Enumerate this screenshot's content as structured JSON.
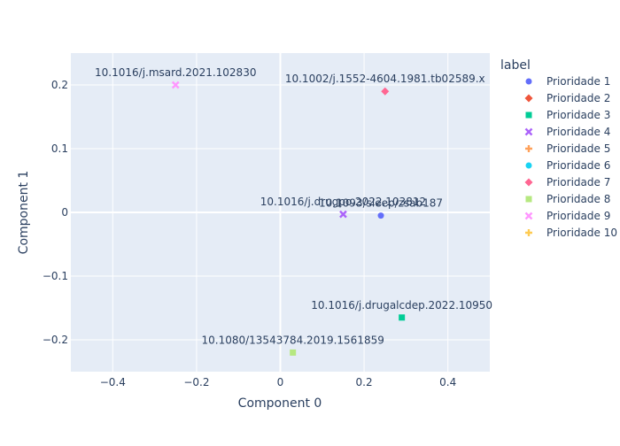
{
  "chart_data": {
    "type": "scatter",
    "xlabel": "Component 0",
    "ylabel": "Component 1",
    "xlim": [
      -0.5,
      0.5
    ],
    "ylim": [
      -0.25,
      0.25
    ],
    "x_ticks": [
      -0.4,
      -0.2,
      0,
      0.2,
      0.4
    ],
    "x_tick_labels": [
      "−0.4",
      "−0.2",
      "0",
      "0.2",
      "0.4"
    ],
    "y_ticks": [
      -0.2,
      -0.1,
      0,
      0.1,
      0.2
    ],
    "y_tick_labels": [
      "−0.2",
      "−0.1",
      "0",
      "0.1",
      "0.2"
    ],
    "grid": true,
    "legend_title": "label",
    "legend_position": "right",
    "plot_background": "#e5ecf6",
    "series": [
      {
        "name": "Prioridade 1",
        "color": "#636efa",
        "symbol": "circle",
        "points": [
          {
            "x": 0.24,
            "y": -0.005,
            "text": "10.1093/sleep/zsab187"
          }
        ]
      },
      {
        "name": "Prioridade 2",
        "color": "#ef553b",
        "symbol": "diamond",
        "points": []
      },
      {
        "name": "Prioridade 3",
        "color": "#00cc96",
        "symbol": "square",
        "points": [
          {
            "x": 0.29,
            "y": -0.165,
            "text": "10.1016/j.drugalcdep.2022.10950"
          }
        ]
      },
      {
        "name": "Prioridade 4",
        "color": "#ab63fa",
        "symbol": "x",
        "points": [
          {
            "x": 0.15,
            "y": -0.003,
            "text": "10.1016/j.drugpo.2022.103812"
          }
        ]
      },
      {
        "name": "Prioridade 5",
        "color": "#ffa15a",
        "symbol": "cross",
        "points": []
      },
      {
        "name": "Prioridade 6",
        "color": "#19d3f3",
        "symbol": "circle",
        "points": []
      },
      {
        "name": "Prioridade 7",
        "color": "#ff6692",
        "symbol": "diamond",
        "points": [
          {
            "x": 0.25,
            "y": 0.19,
            "text": "10.1002/j.1552-4604.1981.tb02589.x"
          }
        ]
      },
      {
        "name": "Prioridade 8",
        "color": "#b6e880",
        "symbol": "square",
        "points": [
          {
            "x": 0.03,
            "y": -0.22,
            "text": "10.1080/13543784.2019.1561859"
          }
        ]
      },
      {
        "name": "Prioridade 9",
        "color": "#ff97ff",
        "symbol": "x",
        "points": [
          {
            "x": -0.25,
            "y": 0.2,
            "text": "10.1016/j.msard.2021.102830"
          }
        ]
      },
      {
        "name": "Prioridade 10",
        "color": "#fecb52",
        "symbol": "cross",
        "points": []
      }
    ]
  }
}
